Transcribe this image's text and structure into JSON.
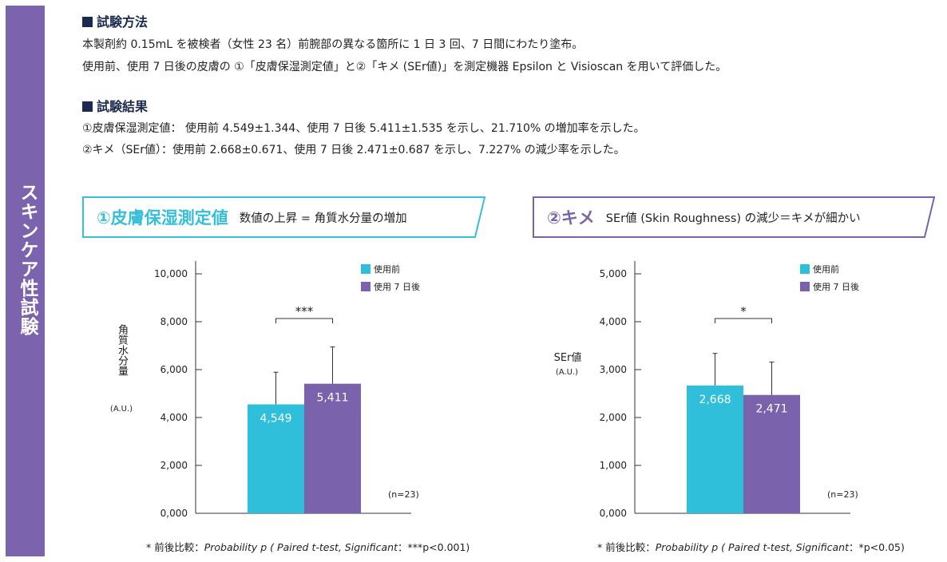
{
  "sidebar": {
    "title": "スキンケア性試験"
  },
  "method": {
    "heading": "試験方法",
    "line1": "本製剤約 0.15mL を被検者（女性 23 名）前腕部の異なる箇所に 1 日 3 回、7 日間にわたり塗布。",
    "line2": "使用前、使用 7 日後の皮膚の ①「皮膚保湿測定値」と②「キメ (SEr値)」を測定機器 Epsilon と Visioscan を用いて評価した。"
  },
  "results": {
    "heading": "試験結果",
    "line1": "①皮膚保湿測定値： 使用前 4.549±1.344、使用 7 日後 5.411±1.535 を示し、21.710% の増加率を示した。",
    "line2": "②キメ（SEr値）：使用前 2.668±0.671、使用 7 日後 2.471±0.687 を示し、7.227% の減少率を示した。"
  },
  "colors": {
    "before": "#2fbfda",
    "after": "#7b62ad",
    "banner1": "#35bfd9",
    "banner2": "#7b62ad",
    "sidebar": "#7c63ad"
  },
  "banner1": {
    "title": "①皮膚保湿測定値",
    "subtitle": "数値の上昇 = 角質水分量の増加"
  },
  "banner2": {
    "title": "②キメ",
    "subtitle": "SEr値 (Skin Roughness) の減少＝キメが細かい"
  },
  "chart_data": [
    {
      "type": "bar",
      "categories": [
        "使用前",
        "使用 7 日後"
      ],
      "values": [
        4549,
        5411
      ],
      "errors": [
        1344,
        1535
      ],
      "value_labels": [
        "4,549",
        "5,411"
      ],
      "ylim": [
        0,
        10000
      ],
      "yticks": [
        0,
        2000,
        4000,
        6000,
        8000,
        10000
      ],
      "ytick_labels": [
        "0,000",
        "2,000",
        "4,000",
        "6,000",
        "8,000",
        "10,000"
      ],
      "ylabel": "角質水分量",
      "ylabel_unit": "(A.U.)",
      "legend": [
        "使用前",
        "使用 7 日後"
      ],
      "significance": "***",
      "n_label": "(n=23)",
      "footnote_prefix": "* 前後比較：",
      "footnote_italic": "Probability p ( Paired t-test, Significant",
      "footnote_suffix": "：***p<0.001)"
    },
    {
      "type": "bar",
      "categories": [
        "使用前",
        "使用 7 日後"
      ],
      "values": [
        2668,
        2471
      ],
      "errors": [
        671,
        687
      ],
      "value_labels": [
        "2,668",
        "2,471"
      ],
      "ylim": [
        0,
        5000
      ],
      "yticks": [
        0,
        1000,
        2000,
        3000,
        4000,
        5000
      ],
      "ytick_labels": [
        "0,000",
        "1,000",
        "2,000",
        "3,000",
        "4,000",
        "5,000"
      ],
      "ylabel": "SEr値",
      "ylabel_unit": "(A.U.)",
      "legend": [
        "使用前",
        "使用 7 日後"
      ],
      "significance": "*",
      "n_label": "(n=23)",
      "footnote_prefix": "* 前後比較：",
      "footnote_italic": "Probability p ( Paired t-test, Significant",
      "footnote_suffix": "：*p<0.05)"
    }
  ]
}
